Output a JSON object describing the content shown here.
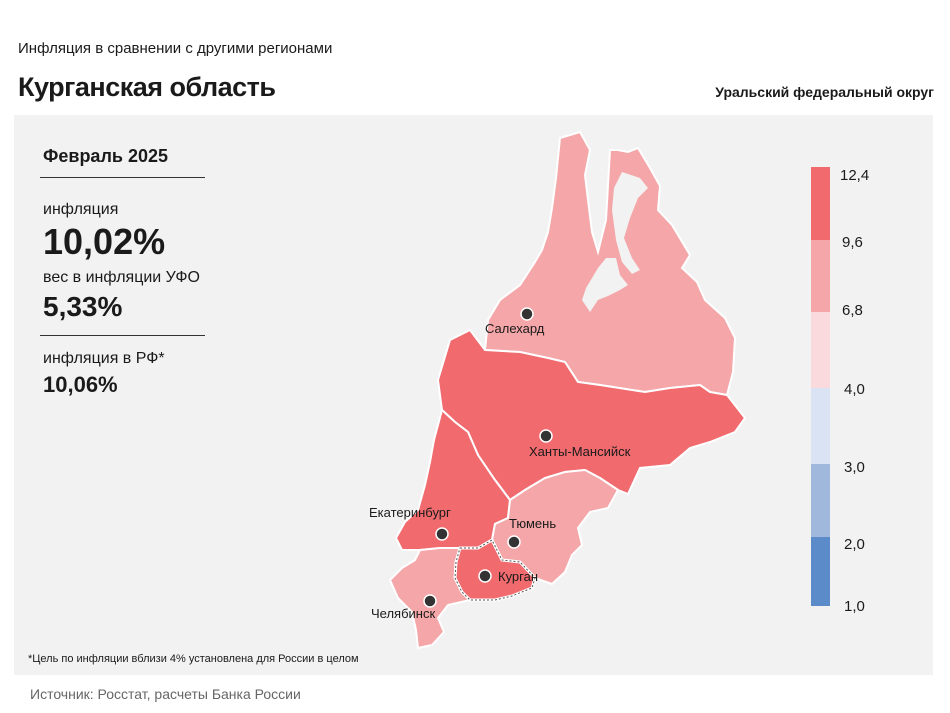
{
  "header": {
    "subtitle": "Инфляция  в сравнении  с другими  регионами",
    "title": "Курганская область",
    "district": "Уральский федеральный округ"
  },
  "stats": {
    "period": "Февраль 2025",
    "inflation_label": "инфляция",
    "inflation_value": "10,02%",
    "weight_label": "вес в инфляции  УФО",
    "weight_value": "5,33%",
    "rf_label": "инфляция  в РФ*",
    "rf_value": "10,06%"
  },
  "footnote": "*Цель по инфляции вблизи 4% установлена для России в целом",
  "source": "Источник: Росстат, расчеты Банка России",
  "map": {
    "highlighted_region": "Курган",
    "regions": [
      {
        "name": "Ямало-Ненецкий АО",
        "bucket": "6,8–9,6",
        "color": "#f4a6a8"
      },
      {
        "name": "Ханты-Мансийский АО",
        "bucket": "9,6–12,4",
        "color": "#f06a6e"
      },
      {
        "name": "Свердловская область",
        "bucket": "9,6–12,4",
        "color": "#f06a6e"
      },
      {
        "name": "Тюменская область",
        "bucket": "6,8–9,6",
        "color": "#f4a6a8"
      },
      {
        "name": "Челябинская область",
        "bucket": "6,8–9,6",
        "color": "#f4a6a8"
      },
      {
        "name": "Курганская область",
        "bucket": "9,6–12,4",
        "color": "#f06a6e"
      }
    ],
    "cities": {
      "salekhard": "Салехард",
      "khanty": "Ханты-Мансийск",
      "ekaterinburg": "Екатеринбург",
      "tyumen": "Тюмень",
      "kurgan": "Курган",
      "chelyabinsk": "Челябинск"
    }
  },
  "legend": {
    "ticks": [
      "12,4",
      "9,6",
      "6,8",
      "4,0",
      "3,0",
      "2,0",
      "1,0"
    ],
    "colors": [
      "#f06a6e",
      "#f4a6a8",
      "#fadadd",
      "#dae3f3",
      "#9fb8dc",
      "#5b8bc9"
    ]
  }
}
